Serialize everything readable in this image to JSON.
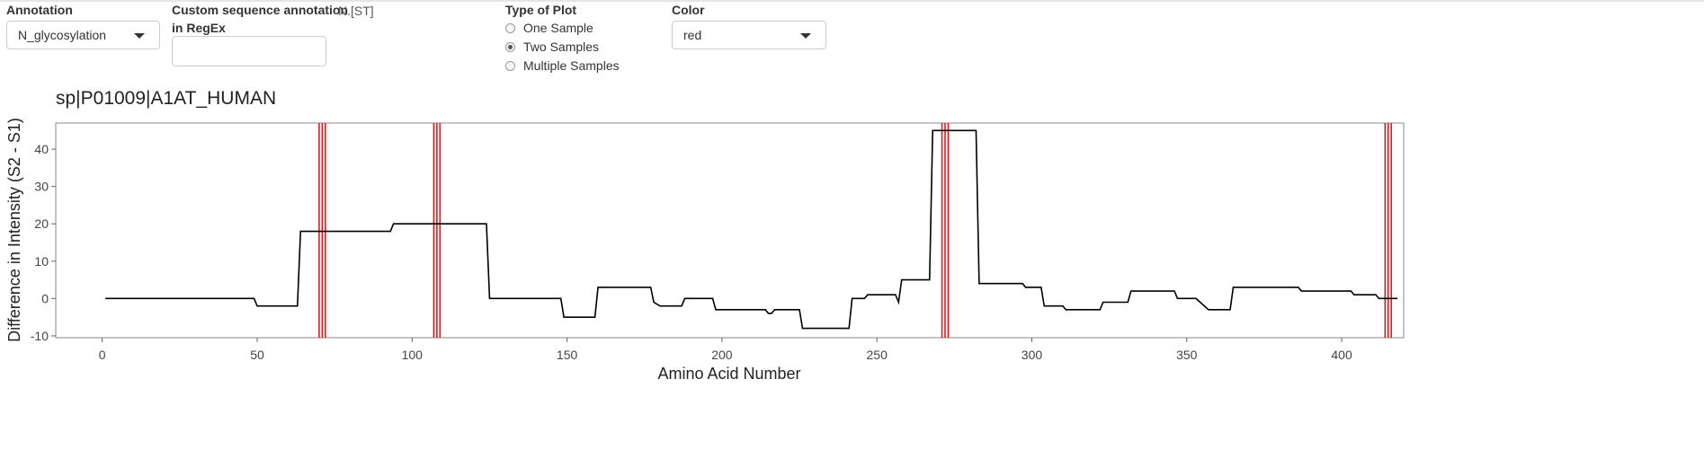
{
  "controls": {
    "annotation": {
      "label": "Annotation",
      "value": "N_glycosylation"
    },
    "custom_regex": {
      "label_line1": "Custom sequence annotation",
      "label_line2": "in RegEx",
      "value": "",
      "hint": "N.[ST]"
    },
    "plot_type": {
      "label": "Type of Plot",
      "options": [
        "One Sample",
        "Two Samples",
        "Multiple Samples"
      ],
      "selected": "Two Samples"
    },
    "color": {
      "label": "Color",
      "value": "red"
    }
  },
  "chart_data": {
    "type": "line",
    "title": "sp|P01009|A1AT_HUMAN",
    "xlabel": "Amino Acid Number",
    "ylabel": "Difference in Intensity (S2 - S1)",
    "xlim": [
      -15,
      420
    ],
    "ylim": [
      -10.5,
      47
    ],
    "xticks": [
      0,
      50,
      100,
      150,
      200,
      250,
      300,
      350,
      400
    ],
    "yticks": [
      -10,
      0,
      10,
      20,
      30,
      40
    ],
    "grid": false,
    "line_color": "#000000",
    "annotation_color": "#e31a1c",
    "annotation_lines": [
      70,
      71,
      72,
      107,
      108,
      109,
      271,
      272,
      273,
      414,
      415,
      416
    ],
    "series": [
      {
        "x": [
          1,
          49,
          50,
          63,
          64,
          93,
          94,
          124,
          125,
          148,
          149,
          159,
          160,
          177,
          178,
          180,
          181,
          187,
          188,
          197,
          198,
          214,
          215,
          216,
          217,
          225,
          226,
          241,
          242,
          246,
          247,
          256,
          257,
          258,
          259,
          267,
          268,
          282,
          283,
          297,
          298,
          303,
          304,
          310,
          311,
          322,
          323,
          331,
          332,
          346,
          347,
          352,
          353,
          357,
          358,
          364,
          365,
          386,
          387,
          398,
          399,
          403,
          404,
          411,
          412,
          418
        ],
        "y": [
          0,
          0,
          -2,
          -2,
          18,
          18,
          20,
          20,
          0,
          0,
          -5,
          -5,
          3,
          3,
          -1,
          -2,
          -2,
          -2,
          0,
          0,
          -3,
          -3,
          -4,
          -4,
          -3,
          -3,
          -8,
          -8,
          0,
          0,
          1,
          1,
          -1,
          5,
          5,
          5,
          45,
          45,
          4,
          4,
          3,
          3,
          -2,
          -2,
          -3,
          -3,
          -1,
          -1,
          2,
          2,
          0,
          0,
          0,
          -3,
          -3,
          -3,
          3,
          3,
          2,
          2,
          2,
          2,
          1,
          1,
          0,
          0
        ]
      }
    ]
  }
}
